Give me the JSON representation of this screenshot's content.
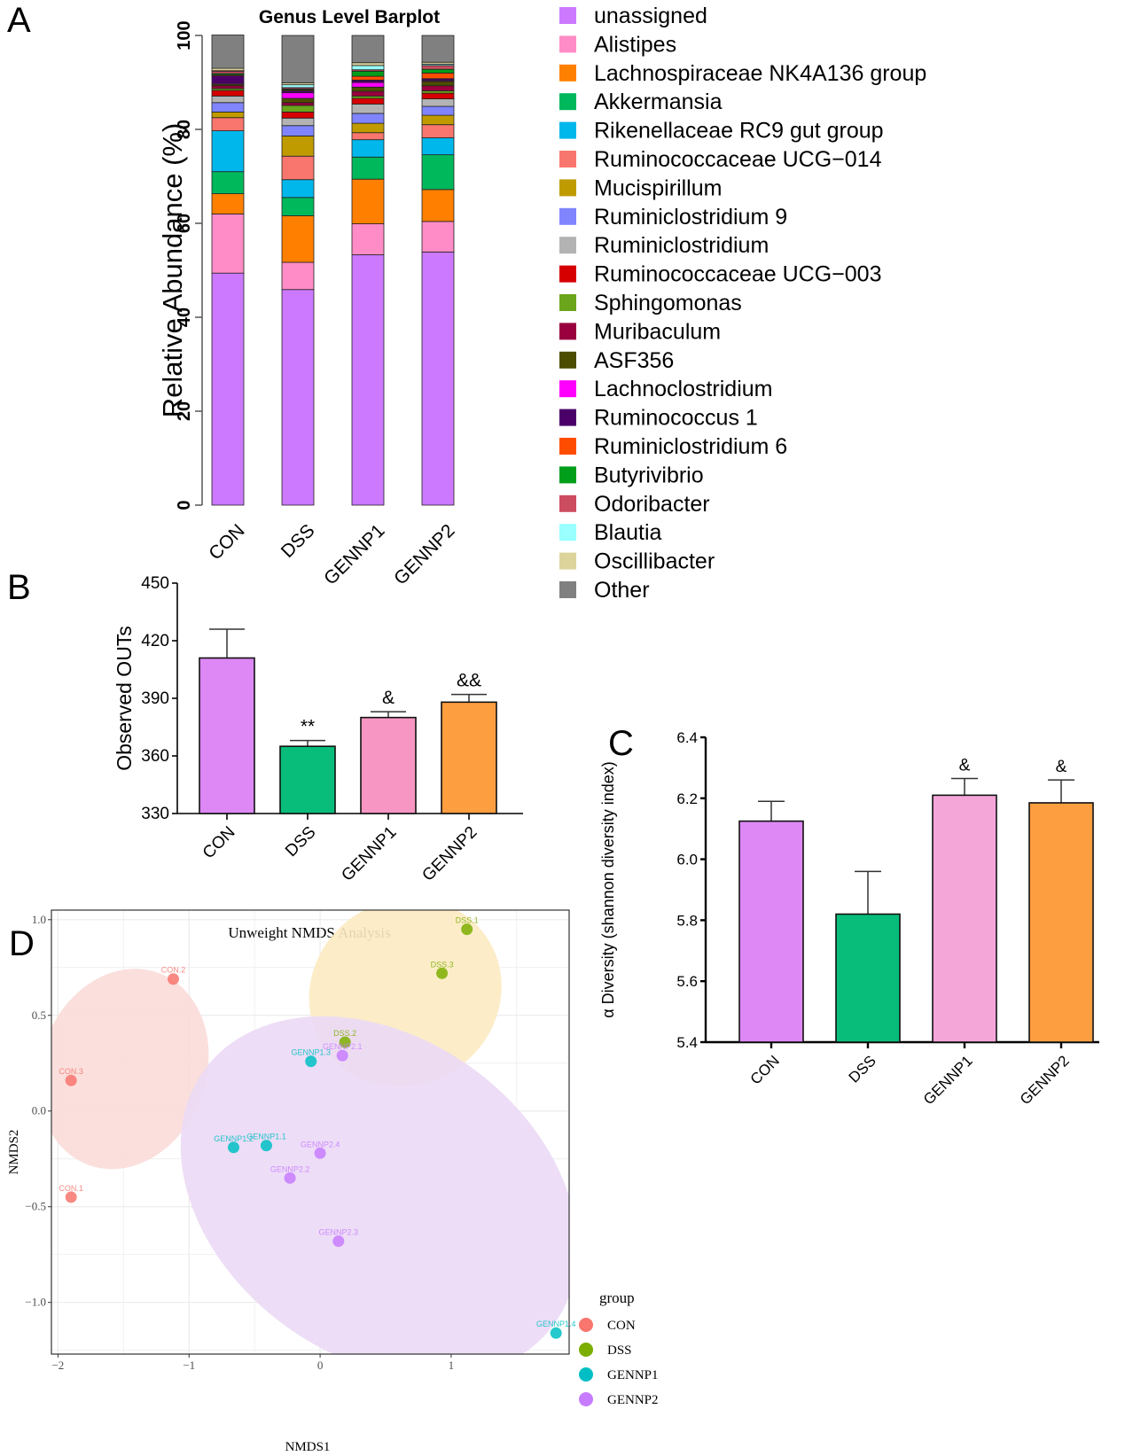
{
  "panel_labels": {
    "a": "A",
    "b": "B",
    "c": "C",
    "d": "D"
  },
  "chart_data": [
    {
      "id": "A",
      "type": "bar",
      "stacked": true,
      "title": "Genus Level Barplot",
      "xlabel": "",
      "ylabel": "Relative Abundance (%)",
      "ylim": [
        0,
        100
      ],
      "yticks": [
        0,
        20,
        40,
        60,
        80,
        100
      ],
      "categories": [
        "CON",
        "DSS",
        "GENNP1",
        "GENNP2"
      ],
      "legend_position": "right",
      "series": [
        {
          "name": "unassigned",
          "color": "#CC79FF",
          "values": [
            49.4,
            45.9,
            53.3,
            53.9
          ]
        },
        {
          "name": "Alistipes",
          "color": "#FF8CC6",
          "values": [
            12.6,
            5.8,
            6.6,
            6.5
          ]
        },
        {
          "name": "Lachnospiraceae NK4A136 group",
          "color": "#FF7F00",
          "values": [
            4.3,
            9.9,
            9.5,
            6.8
          ]
        },
        {
          "name": "Akkermansia",
          "color": "#00B85C",
          "values": [
            4.7,
            3.9,
            4.7,
            7.4
          ]
        },
        {
          "name": "Rikenellaceae RC9 gut group",
          "color": "#00B7EB",
          "values": [
            8.7,
            3.8,
            3.7,
            3.6
          ]
        },
        {
          "name": "Ruminococcaceae UCG-014",
          "color": "#F8766D",
          "values": [
            2.8,
            5.0,
            1.5,
            2.8
          ]
        },
        {
          "name": "Mucispirillum",
          "color": "#C09B00",
          "values": [
            1.2,
            4.3,
            2.0,
            2.0
          ]
        },
        {
          "name": "Ruminiclostridium 9",
          "color": "#8085FF",
          "values": [
            2.0,
            2.2,
            2.1,
            1.9
          ]
        },
        {
          "name": "Ruminiclostridium",
          "color": "#B3B3B3",
          "values": [
            1.4,
            1.6,
            2.0,
            1.6
          ]
        },
        {
          "name": "Ruminococcaceae UCG-003",
          "color": "#D60000",
          "values": [
            1.2,
            1.3,
            1.2,
            1.2
          ]
        },
        {
          "name": "Sphingomonas",
          "color": "#6BA51C",
          "values": [
            0.4,
            1.4,
            0.5,
            0.5
          ]
        },
        {
          "name": "Muribaculum",
          "color": "#99003D",
          "values": [
            0.6,
            0.6,
            1.0,
            1.1
          ]
        },
        {
          "name": "ASF356",
          "color": "#4D4D00",
          "values": [
            0.3,
            0.9,
            0.9,
            0.9
          ]
        },
        {
          "name": "Lachnoclostridium",
          "color": "#FF00FF",
          "values": [
            0.2,
            1.2,
            1.0,
            0.2
          ]
        },
        {
          "name": "Ruminococcus 1",
          "color": "#4B0069",
          "values": [
            1.6,
            0.4,
            0.5,
            0.4
          ]
        },
        {
          "name": "Ruminiclostridium 6",
          "color": "#FF4D00",
          "values": [
            0.2,
            0.2,
            0.8,
            1.2
          ]
        },
        {
          "name": "Butyrivibrio",
          "color": "#009E1A",
          "values": [
            0.3,
            0.2,
            1.1,
            0.8
          ]
        },
        {
          "name": "Odoribacter",
          "color": "#CC4C60",
          "values": [
            0.5,
            0.3,
            0.3,
            0.8
          ]
        },
        {
          "name": "Blautia",
          "color": "#99FFFF",
          "values": [
            0.1,
            0.6,
            0.9,
            0.3
          ]
        },
        {
          "name": "Oscillibacter",
          "color": "#DDD49B",
          "values": [
            0.5,
            0.4,
            0.6,
            0.4
          ]
        },
        {
          "name": "Other",
          "color": "#808080",
          "values": [
            7.1,
            10.1,
            5.8,
            5.7
          ]
        }
      ]
    },
    {
      "id": "B",
      "type": "bar",
      "title": "",
      "xlabel": "",
      "ylabel": "Observed OUTs",
      "ylim": [
        330,
        450
      ],
      "yticks": [
        330,
        360,
        390,
        420,
        450
      ],
      "categories": [
        "CON",
        "DSS",
        "GENNP1",
        "GENNP2"
      ],
      "values": [
        411,
        365,
        380,
        388
      ],
      "error_upper": [
        426,
        368,
        383,
        392
      ],
      "annotations": [
        "",
        "**",
        "&",
        "&&"
      ],
      "colors": [
        "#DD88F5",
        "#08BD7A",
        "#F796C3",
        "#FD9E40"
      ]
    },
    {
      "id": "C",
      "type": "bar",
      "title": "",
      "xlabel": "",
      "ylabel": "α Diversity (shannon diversity index)",
      "ylim": [
        5.4,
        6.4
      ],
      "yticks": [
        "5.4",
        "5.6",
        "5.8",
        "6.0",
        "6.2",
        "6.4"
      ],
      "categories": [
        "CON",
        "DSS",
        "GENNP1",
        "GENNP2"
      ],
      "values": [
        6.125,
        5.82,
        6.21,
        6.185
      ],
      "error_upper": [
        6.19,
        5.96,
        6.265,
        6.26
      ],
      "annotations": [
        "",
        "",
        "&",
        "&"
      ],
      "colors": [
        "#DD88F5",
        "#08BD7A",
        "#F5A6D8",
        "#FD9E40"
      ]
    },
    {
      "id": "D",
      "type": "scatter",
      "title": "Unweight NMDS Analysis",
      "xlabel": "NMDS1",
      "ylabel": "NMDS2",
      "xlim": [
        -2.05,
        1.9
      ],
      "ylim": [
        -1.27,
        1.05
      ],
      "xticks": [
        -2,
        -1,
        0,
        1
      ],
      "yticks": [
        -1.0,
        -0.5,
        0.0,
        0.5,
        1.0
      ],
      "ytick_labels": [
        "−1.0",
        "−0.5",
        "0.0",
        "0.5",
        "1.0"
      ],
      "xtick_labels": [
        "−2",
        "−1",
        "0",
        "1"
      ],
      "grid": true,
      "legend_title": "group",
      "legend_position": "right",
      "groups": [
        {
          "name": "CON",
          "color": "#F8766D",
          "ellipse": "#FADBD8"
        },
        {
          "name": "DSS",
          "color": "#7CAE00",
          "ellipse": "#FCEBC2"
        },
        {
          "name": "GENNP1",
          "color": "#00BFC4",
          "ellipse": null
        },
        {
          "name": "GENNP2",
          "color": "#C77CFF",
          "ellipse": "#EBD9F5"
        }
      ],
      "ellipses": [
        {
          "group": "CON",
          "cx": -1.5,
          "cy": 0.22,
          "rx": 0.78,
          "ry": 0.27,
          "angle_deg": 70
        },
        {
          "group": "DSS",
          "cx": 0.65,
          "cy": 0.62,
          "rx": 0.75,
          "ry": 0.3,
          "angle_deg": 35
        },
        {
          "group": "GENNP2",
          "cx": 0.45,
          "cy": -0.45,
          "rx": 1.65,
          "ry": 0.52,
          "angle_deg": -36
        }
      ],
      "points": [
        {
          "label": "CON.1",
          "group": "CON",
          "x": -1.9,
          "y": -0.45
        },
        {
          "label": "CON.2",
          "group": "CON",
          "x": -1.12,
          "y": 0.69
        },
        {
          "label": "CON.3",
          "group": "CON",
          "x": -1.9,
          "y": 0.16
        },
        {
          "label": "DSS.1",
          "group": "DSS",
          "x": 1.12,
          "y": 0.95
        },
        {
          "label": "DSS.2",
          "group": "DSS",
          "x": 0.19,
          "y": 0.36
        },
        {
          "label": "DSS.3",
          "group": "DSS",
          "x": 0.93,
          "y": 0.72
        },
        {
          "label": "GENNP1.1",
          "group": "GENNP1",
          "x": -0.41,
          "y": -0.18
        },
        {
          "label": "GENNP1.2",
          "group": "GENNP1",
          "x": -0.66,
          "y": -0.19
        },
        {
          "label": "GENNP1.3",
          "group": "GENNP1",
          "x": -0.07,
          "y": 0.26
        },
        {
          "label": "GENNP1.4",
          "group": "GENNP1",
          "x": 1.8,
          "y": -1.16
        },
        {
          "label": "GENNP2.1",
          "group": "GENNP2",
          "x": 0.17,
          "y": 0.29
        },
        {
          "label": "GENNP2.2",
          "group": "GENNP2",
          "x": -0.23,
          "y": -0.35
        },
        {
          "label": "GENNP2.3",
          "group": "GENNP2",
          "x": 0.14,
          "y": -0.68
        },
        {
          "label": "GENNP2.4",
          "group": "GENNP2",
          "x": 0.0,
          "y": -0.22
        }
      ]
    }
  ]
}
